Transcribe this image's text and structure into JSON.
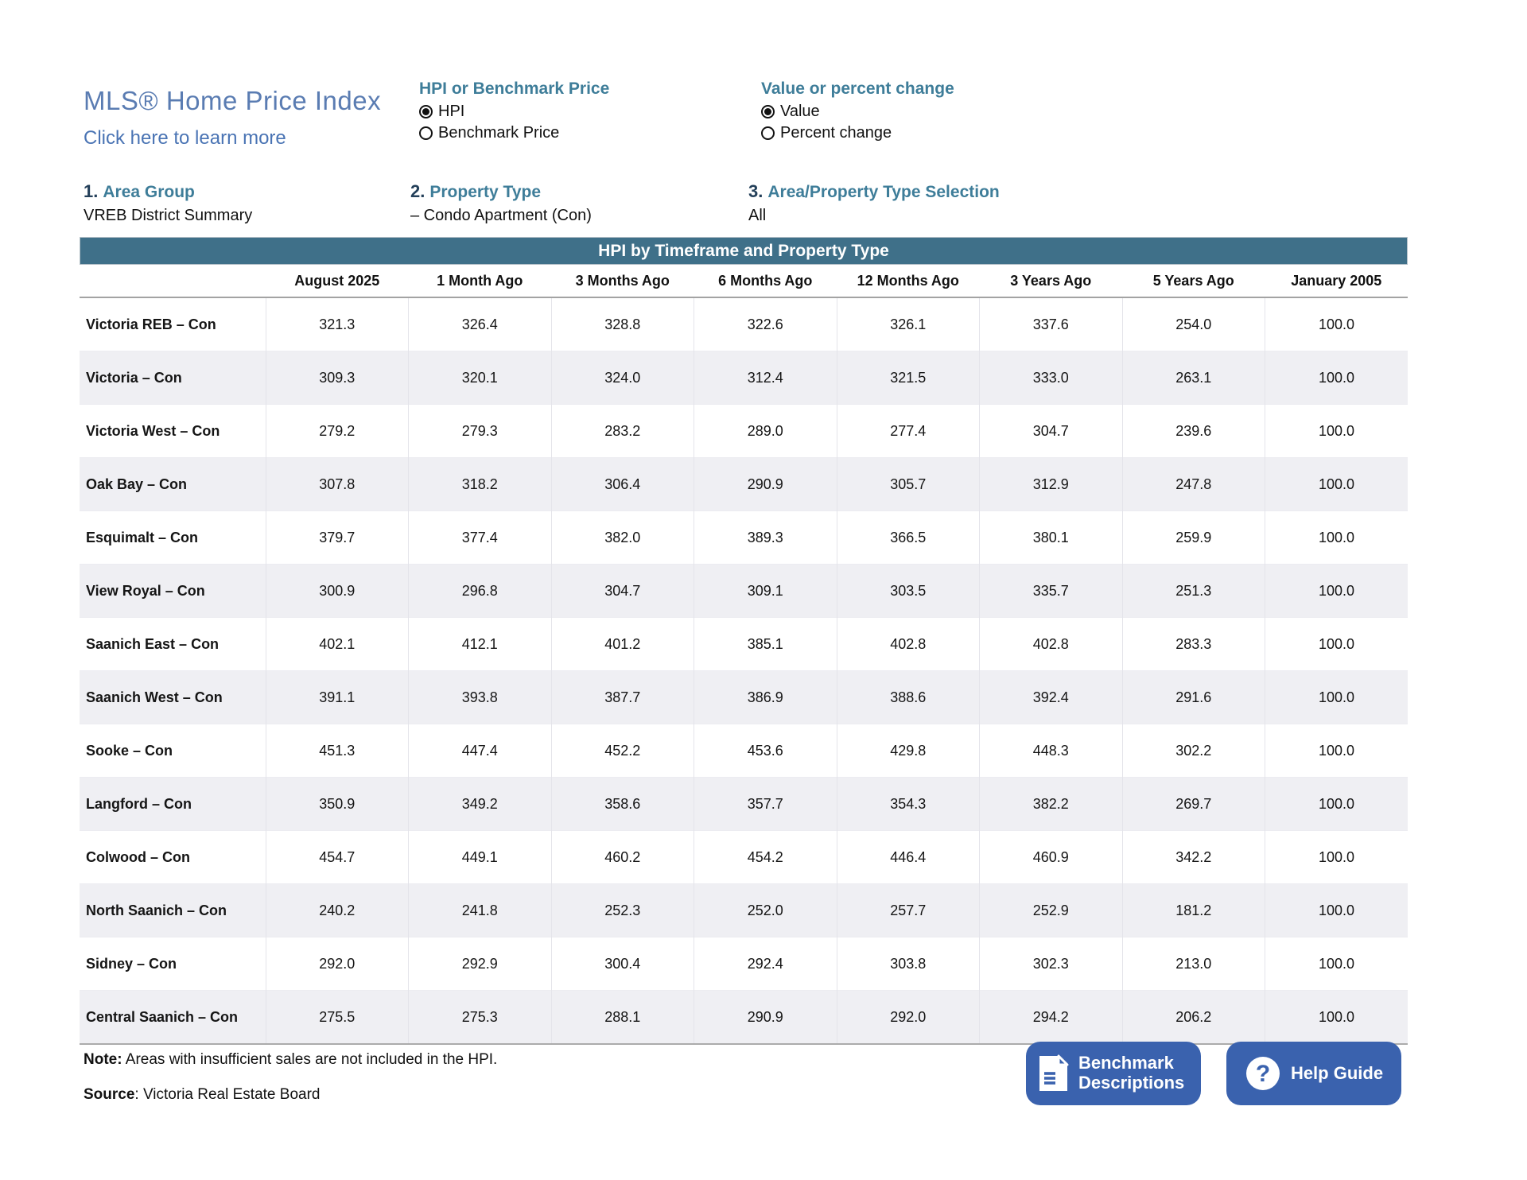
{
  "page": {
    "title": "MLS® Home Price Index",
    "learn_more_link": "Click here to learn more"
  },
  "controls": {
    "radio_groups": [
      {
        "heading": "HPI or Benchmark Price",
        "options": [
          {
            "label": "HPI",
            "selected": true
          },
          {
            "label": "Benchmark Price",
            "selected": false
          }
        ]
      },
      {
        "heading": "Value or percent change",
        "options": [
          {
            "label": "Value",
            "selected": true
          },
          {
            "label": "Percent change",
            "selected": false
          }
        ]
      }
    ],
    "selections": [
      {
        "number": "1.",
        "label": "Area Group",
        "value": "VREB District Summary"
      },
      {
        "number": "2.",
        "label": "Property Type",
        "value": "– Condo Apartment (Con)"
      },
      {
        "number": "3.",
        "label": "Area/Property Type Selection",
        "value": "All"
      }
    ]
  },
  "table": {
    "title": "HPI by Timeframe and Property Type",
    "columns": [
      "August 2025",
      "1 Month Ago",
      "3 Months Ago",
      "6 Months Ago",
      "12 Months Ago",
      "3 Years Ago",
      "5 Years Ago",
      "January 2005"
    ],
    "rows": [
      {
        "label": "Victoria REB – Con",
        "values": [
          "321.3",
          "326.4",
          "328.8",
          "322.6",
          "326.1",
          "337.6",
          "254.0",
          "100.0"
        ]
      },
      {
        "label": "Victoria – Con",
        "values": [
          "309.3",
          "320.1",
          "324.0",
          "312.4",
          "321.5",
          "333.0",
          "263.1",
          "100.0"
        ]
      },
      {
        "label": "Victoria West – Con",
        "values": [
          "279.2",
          "279.3",
          "283.2",
          "289.0",
          "277.4",
          "304.7",
          "239.6",
          "100.0"
        ]
      },
      {
        "label": "Oak Bay – Con",
        "values": [
          "307.8",
          "318.2",
          "306.4",
          "290.9",
          "305.7",
          "312.9",
          "247.8",
          "100.0"
        ]
      },
      {
        "label": "Esquimalt – Con",
        "values": [
          "379.7",
          "377.4",
          "382.0",
          "389.3",
          "366.5",
          "380.1",
          "259.9",
          "100.0"
        ]
      },
      {
        "label": "View Royal – Con",
        "values": [
          "300.9",
          "296.8",
          "304.7",
          "309.1",
          "303.5",
          "335.7",
          "251.3",
          "100.0"
        ]
      },
      {
        "label": "Saanich East – Con",
        "values": [
          "402.1",
          "412.1",
          "401.2",
          "385.1",
          "402.8",
          "402.8",
          "283.3",
          "100.0"
        ]
      },
      {
        "label": "Saanich West – Con",
        "values": [
          "391.1",
          "393.8",
          "387.7",
          "386.9",
          "388.6",
          "392.4",
          "291.6",
          "100.0"
        ]
      },
      {
        "label": "Sooke – Con",
        "values": [
          "451.3",
          "447.4",
          "452.2",
          "453.6",
          "429.8",
          "448.3",
          "302.2",
          "100.0"
        ]
      },
      {
        "label": "Langford – Con",
        "values": [
          "350.9",
          "349.2",
          "358.6",
          "357.7",
          "354.3",
          "382.2",
          "269.7",
          "100.0"
        ]
      },
      {
        "label": "Colwood – Con",
        "values": [
          "454.7",
          "449.1",
          "460.2",
          "454.2",
          "446.4",
          "460.9",
          "342.2",
          "100.0"
        ]
      },
      {
        "label": "North Saanich – Con",
        "values": [
          "240.2",
          "241.8",
          "252.3",
          "252.0",
          "257.7",
          "252.9",
          "181.2",
          "100.0"
        ]
      },
      {
        "label": "Sidney – Con",
        "values": [
          "292.0",
          "292.9",
          "300.4",
          "292.4",
          "303.8",
          "302.3",
          "213.0",
          "100.0"
        ]
      },
      {
        "label": "Central Saanich – Con",
        "values": [
          "275.5",
          "275.3",
          "288.1",
          "290.9",
          "292.0",
          "294.2",
          "206.2",
          "100.0"
        ]
      }
    ]
  },
  "footer": {
    "note_label": "Note:",
    "note_text": "Areas with insufficient sales are not included in the HPI.",
    "source_label": "Source",
    "source_text": ": Victoria Real Estate Board",
    "buttons": [
      {
        "label": "Benchmark Descriptions",
        "icon": "document-icon"
      },
      {
        "label": "Help Guide",
        "icon": "question-icon"
      }
    ]
  },
  "colors": {
    "table_header_bg": "#3F7089",
    "section_heading_teal": "#3E7D99",
    "title_blue": "#5A7CB2",
    "link_blue": "#4A74B4",
    "button_blue": "#3A62AE",
    "row_alt_bg": "#EFEFF3"
  }
}
